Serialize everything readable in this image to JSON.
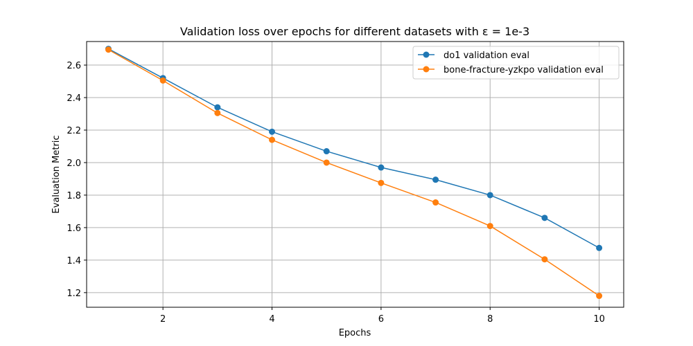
{
  "chart_data": {
    "type": "line",
    "title": "Validation loss over epochs for different datasets with ε = 1e-3",
    "xlabel": "Epochs",
    "ylabel": "Evaluation Metric",
    "x": [
      1,
      2,
      3,
      4,
      5,
      6,
      7,
      8,
      9,
      10
    ],
    "xlim": [
      0.6,
      10.45
    ],
    "ylim": [
      1.11,
      2.745
    ],
    "xticks": [
      2,
      4,
      6,
      8,
      10
    ],
    "yticks": [
      1.2,
      1.4,
      1.6,
      1.8,
      2.0,
      2.2,
      2.4,
      2.6
    ],
    "ytick_labels": [
      "1.2",
      "1.4",
      "1.6",
      "1.8",
      "2.0",
      "2.2",
      "2.4",
      "2.6"
    ],
    "grid": true,
    "legend_position": "top-right",
    "series": [
      {
        "name": "do1 validation eval",
        "color": "#1f77b4",
        "values": [
          2.7,
          2.52,
          2.34,
          2.19,
          2.07,
          1.97,
          1.895,
          1.8,
          1.66,
          1.475
        ]
      },
      {
        "name": "bone-fracture-yzkpo validation eval",
        "color": "#ff7f0e",
        "values": [
          2.695,
          2.505,
          2.305,
          2.14,
          2.0,
          1.875,
          1.755,
          1.61,
          1.405,
          1.18
        ]
      }
    ]
  }
}
